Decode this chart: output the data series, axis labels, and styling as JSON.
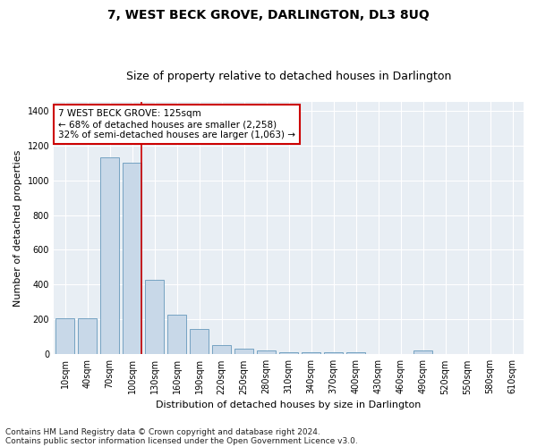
{
  "title": "7, WEST BECK GROVE, DARLINGTON, DL3 8UQ",
  "subtitle": "Size of property relative to detached houses in Darlington",
  "xlabel": "Distribution of detached houses by size in Darlington",
  "ylabel": "Number of detached properties",
  "categories": [
    "10sqm",
    "40sqm",
    "70sqm",
    "100sqm",
    "130sqm",
    "160sqm",
    "190sqm",
    "220sqm",
    "250sqm",
    "280sqm",
    "310sqm",
    "340sqm",
    "370sqm",
    "400sqm",
    "430sqm",
    "460sqm",
    "490sqm",
    "520sqm",
    "550sqm",
    "580sqm",
    "610sqm"
  ],
  "values": [
    207,
    207,
    1130,
    1100,
    430,
    230,
    145,
    55,
    35,
    20,
    10,
    10,
    10,
    10,
    0,
    0,
    20,
    0,
    0,
    0,
    0
  ],
  "bar_color": "#c8d8e8",
  "bar_edge_color": "#6699bb",
  "vline_color": "#cc0000",
  "annotation_text": "7 WEST BECK GROVE: 125sqm\n← 68% of detached houses are smaller (2,258)\n32% of semi-detached houses are larger (1,063) →",
  "annotation_box_color": "#ffffff",
  "annotation_box_edge": "#cc0000",
  "ylim": [
    0,
    1450
  ],
  "yticks": [
    0,
    200,
    400,
    600,
    800,
    1000,
    1200,
    1400
  ],
  "footnote1": "Contains HM Land Registry data © Crown copyright and database right 2024.",
  "footnote2": "Contains public sector information licensed under the Open Government Licence v3.0.",
  "bg_color": "#e8eef4",
  "title_fontsize": 10,
  "subtitle_fontsize": 9,
  "xlabel_fontsize": 8,
  "ylabel_fontsize": 8,
  "tick_fontsize": 7,
  "annotation_fontsize": 7.5,
  "footnote_fontsize": 6.5
}
